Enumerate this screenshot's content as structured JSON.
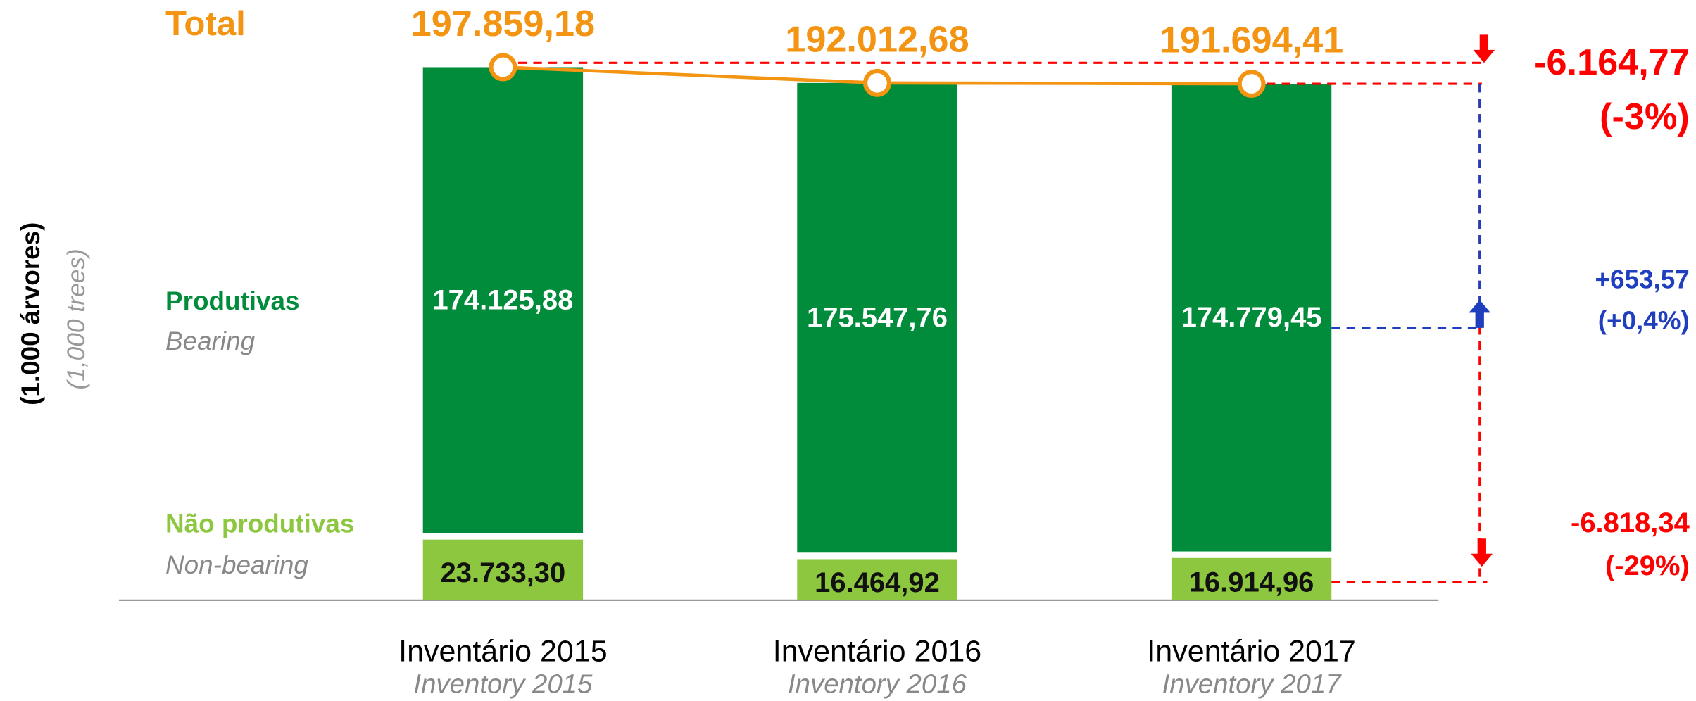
{
  "chart_data": {
    "type": "bar",
    "stacked": true,
    "y_label": "(1.000 árvores)",
    "y_label_en": "(1,000 trees)",
    "categories": [
      "Inventário 2015",
      "Inventário 2016",
      "Inventário 2017"
    ],
    "categories_en": [
      "Inventory 2015",
      "Inventory 2016",
      "Inventory 2017"
    ],
    "series": [
      {
        "name": "Não produtivas",
        "name_en": "Non-bearing",
        "color": "#8dc63f",
        "values": [
          23733.3,
          16464.92,
          16914.96
        ],
        "value_labels": [
          "23.733,30",
          "16.464,92",
          "16.914,96"
        ]
      },
      {
        "name": "Produtivas",
        "name_en": "Bearing",
        "color": "#008c3a",
        "values": [
          174125.88,
          175547.76,
          174779.45
        ],
        "value_labels": [
          "174.125,88",
          "175.547,76",
          "174.779,45"
        ]
      },
      {
        "name": "Total",
        "type": "line",
        "color": "#f39412",
        "values": [
          197859.18,
          192012.68,
          191694.41
        ],
        "value_labels": [
          "197.859,18",
          "192.012,68",
          "191.694,41"
        ]
      }
    ],
    "annotations": [
      {
        "text": "-6.818,34",
        "pct": "(-29%)",
        "color": "#ff0000"
      },
      {
        "text": "+653,57",
        "pct": "(+0,4%)",
        "color": "#1f3fbf"
      },
      {
        "text": "-6.164,77",
        "pct": "(-3%)",
        "color": "#ff0000"
      }
    ]
  }
}
